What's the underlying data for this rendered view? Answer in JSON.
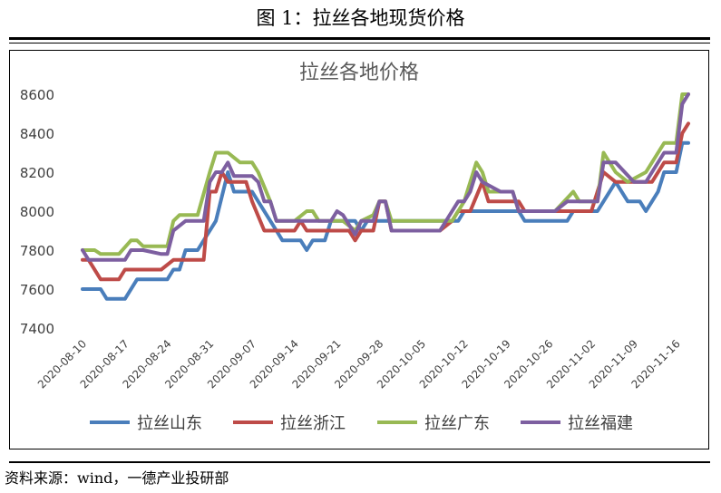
{
  "figure_title": "图 1：拉丝各地现货价格",
  "source_note": "资料来源：wind，一德产业投研部",
  "chart_data": {
    "type": "line",
    "title": "拉丝各地价格",
    "xlabel": "",
    "ylabel": "",
    "ylim": [
      7400,
      8600
    ],
    "yticks": [
      7400,
      7600,
      7800,
      8000,
      8200,
      8400,
      8600
    ],
    "xtick_labels": [
      "2020-08-10",
      "2020-08-17",
      "2020-08-24",
      "2020-08-31",
      "2020-09-07",
      "2020-09-14",
      "2020-09-21",
      "2020-09-28",
      "2020-10-05",
      "2020-10-12",
      "2020-10-19",
      "2020-10-26",
      "2020-11-02",
      "2020-11-09",
      "2020-11-16"
    ],
    "grid": false,
    "legend_position": "bottom",
    "series": [
      {
        "name": "拉丝山东",
        "color": "#4A7EBB",
        "points": [
          [
            "2020-08-10",
            7600
          ],
          [
            "2020-08-13",
            7600
          ],
          [
            "2020-08-14",
            7550
          ],
          [
            "2020-08-17",
            7550
          ],
          [
            "2020-08-19",
            7650
          ],
          [
            "2020-08-24",
            7650
          ],
          [
            "2020-08-25",
            7700
          ],
          [
            "2020-08-26",
            7700
          ],
          [
            "2020-08-27",
            7800
          ],
          [
            "2020-08-29",
            7800
          ],
          [
            "2020-09-01",
            7950
          ],
          [
            "2020-09-03",
            8200
          ],
          [
            "2020-09-04",
            8100
          ],
          [
            "2020-09-07",
            8100
          ],
          [
            "2020-09-10",
            7950
          ],
          [
            "2020-09-11",
            7900
          ],
          [
            "2020-09-12",
            7850
          ],
          [
            "2020-09-15",
            7850
          ],
          [
            "2020-09-16",
            7800
          ],
          [
            "2020-09-17",
            7850
          ],
          [
            "2020-09-19",
            7850
          ],
          [
            "2020-09-20",
            7950
          ],
          [
            "2020-09-23",
            7950
          ],
          [
            "2020-09-24",
            7950
          ],
          [
            "2020-09-25",
            7900
          ],
          [
            "2020-09-26",
            7950
          ],
          [
            "2020-09-30",
            7950
          ],
          [
            "2020-10-01",
            7950
          ],
          [
            "2020-10-11",
            7950
          ],
          [
            "2020-10-12",
            8000
          ],
          [
            "2020-10-15",
            8000
          ],
          [
            "2020-10-21",
            8000
          ],
          [
            "2020-10-22",
            7950
          ],
          [
            "2020-10-26",
            7950
          ],
          [
            "2020-10-29",
            7950
          ],
          [
            "2020-10-30",
            8000
          ],
          [
            "2020-11-03",
            8000
          ],
          [
            "2020-11-06",
            8150
          ],
          [
            "2020-11-08",
            8050
          ],
          [
            "2020-11-10",
            8050
          ],
          [
            "2020-11-11",
            8000
          ],
          [
            "2020-11-12",
            8050
          ],
          [
            "2020-11-13",
            8100
          ],
          [
            "2020-11-14",
            8200
          ],
          [
            "2020-11-16",
            8200
          ],
          [
            "2020-11-17",
            8350
          ],
          [
            "2020-11-18",
            8350
          ]
        ]
      },
      {
        "name": "拉丝浙江",
        "color": "#BE4B48",
        "points": [
          [
            "2020-08-10",
            7750
          ],
          [
            "2020-08-11",
            7750
          ],
          [
            "2020-08-13",
            7650
          ],
          [
            "2020-08-16",
            7650
          ],
          [
            "2020-08-17",
            7700
          ],
          [
            "2020-08-23",
            7700
          ],
          [
            "2020-08-25",
            7750
          ],
          [
            "2020-08-29",
            7750
          ],
          [
            "2020-08-30",
            7750
          ],
          [
            "2020-08-31",
            8100
          ],
          [
            "2020-09-01",
            8100
          ],
          [
            "2020-09-02",
            8200
          ],
          [
            "2020-09-03",
            8150
          ],
          [
            "2020-09-06",
            8150
          ],
          [
            "2020-09-07",
            8050
          ],
          [
            "2020-09-09",
            7900
          ],
          [
            "2020-09-13",
            7900
          ],
          [
            "2020-09-14",
            7900
          ],
          [
            "2020-09-15",
            7950
          ],
          [
            "2020-09-16",
            7900
          ],
          [
            "2020-09-23",
            7900
          ],
          [
            "2020-09-24",
            7850
          ],
          [
            "2020-09-25",
            7900
          ],
          [
            "2020-09-27",
            7900
          ],
          [
            "2020-09-28",
            8050
          ],
          [
            "2020-09-29",
            8050
          ],
          [
            "2020-09-30",
            7900
          ],
          [
            "2020-10-06",
            7900
          ],
          [
            "2020-10-08",
            7900
          ],
          [
            "2020-10-10",
            7950
          ],
          [
            "2020-10-11",
            8000
          ],
          [
            "2020-10-13",
            8000
          ],
          [
            "2020-10-15",
            8150
          ],
          [
            "2020-10-16",
            8050
          ],
          [
            "2020-10-21",
            8050
          ],
          [
            "2020-10-22",
            8000
          ],
          [
            "2020-10-31",
            8000
          ],
          [
            "2020-11-02",
            8000
          ],
          [
            "2020-11-04",
            8200
          ],
          [
            "2020-11-06",
            8150
          ],
          [
            "2020-11-11",
            8150
          ],
          [
            "2020-11-12",
            8150
          ],
          [
            "2020-11-14",
            8250
          ],
          [
            "2020-11-16",
            8250
          ],
          [
            "2020-11-17",
            8400
          ],
          [
            "2020-11-18",
            8450
          ]
        ]
      },
      {
        "name": "拉丝广东",
        "color": "#98B954",
        "points": [
          [
            "2020-08-10",
            7800
          ],
          [
            "2020-08-11",
            7800
          ],
          [
            "2020-08-12",
            7800
          ],
          [
            "2020-08-13",
            7780
          ],
          [
            "2020-08-16",
            7780
          ],
          [
            "2020-08-18",
            7850
          ],
          [
            "2020-08-19",
            7850
          ],
          [
            "2020-08-20",
            7820
          ],
          [
            "2020-08-23",
            7820
          ],
          [
            "2020-08-24",
            7820
          ],
          [
            "2020-08-25",
            7950
          ],
          [
            "2020-08-26",
            7980
          ],
          [
            "2020-08-29",
            7980
          ],
          [
            "2020-08-31",
            8200
          ],
          [
            "2020-09-01",
            8300
          ],
          [
            "2020-09-03",
            8300
          ],
          [
            "2020-09-05",
            8250
          ],
          [
            "2020-09-07",
            8250
          ],
          [
            "2020-09-08",
            8200
          ],
          [
            "2020-09-10",
            8050
          ],
          [
            "2020-09-11",
            7950
          ],
          [
            "2020-09-14",
            7950
          ],
          [
            "2020-09-16",
            8000
          ],
          [
            "2020-09-17",
            8000
          ],
          [
            "2020-09-18",
            7950
          ],
          [
            "2020-09-19",
            7950
          ],
          [
            "2020-09-22",
            7950
          ],
          [
            "2020-09-24",
            7900
          ],
          [
            "2020-09-25",
            7950
          ],
          [
            "2020-09-27",
            7980
          ],
          [
            "2020-09-28",
            8050
          ],
          [
            "2020-09-29",
            8050
          ],
          [
            "2020-09-30",
            7950
          ],
          [
            "2020-10-06",
            7950
          ],
          [
            "2020-10-10",
            7950
          ],
          [
            "2020-10-11",
            8000
          ],
          [
            "2020-10-12",
            8050
          ],
          [
            "2020-10-13",
            8150
          ],
          [
            "2020-10-14",
            8250
          ],
          [
            "2020-10-15",
            8200
          ],
          [
            "2020-10-16",
            8100
          ],
          [
            "2020-10-20",
            8100
          ],
          [
            "2020-10-21",
            8000
          ],
          [
            "2020-10-27",
            8000
          ],
          [
            "2020-10-30",
            8100
          ],
          [
            "2020-10-31",
            8050
          ],
          [
            "2020-11-03",
            8050
          ],
          [
            "2020-11-04",
            8300
          ],
          [
            "2020-11-06",
            8200
          ],
          [
            "2020-11-08",
            8150
          ],
          [
            "2020-11-11",
            8200
          ],
          [
            "2020-11-13",
            8300
          ],
          [
            "2020-11-14",
            8350
          ],
          [
            "2020-11-16",
            8350
          ],
          [
            "2020-11-17",
            8600
          ],
          [
            "2020-11-18",
            8600
          ]
        ]
      },
      {
        "name": "拉丝福建",
        "color": "#7D5FA0",
        "points": [
          [
            "2020-08-10",
            7800
          ],
          [
            "2020-08-11",
            7750
          ],
          [
            "2020-08-17",
            7750
          ],
          [
            "2020-08-18",
            7800
          ],
          [
            "2020-08-19",
            7800
          ],
          [
            "2020-08-20",
            7800
          ],
          [
            "2020-08-23",
            7780
          ],
          [
            "2020-08-24",
            7780
          ],
          [
            "2020-08-25",
            7900
          ],
          [
            "2020-08-27",
            7950
          ],
          [
            "2020-08-30",
            7950
          ],
          [
            "2020-08-31",
            8150
          ],
          [
            "2020-09-01",
            8200
          ],
          [
            "2020-09-02",
            8200
          ],
          [
            "2020-09-03",
            8250
          ],
          [
            "2020-09-04",
            8180
          ],
          [
            "2020-09-07",
            8180
          ],
          [
            "2020-09-08",
            8150
          ],
          [
            "2020-09-09",
            8050
          ],
          [
            "2020-09-10",
            8050
          ],
          [
            "2020-09-11",
            7950
          ],
          [
            "2020-09-15",
            7950
          ],
          [
            "2020-09-17",
            7950
          ],
          [
            "2020-09-20",
            7950
          ],
          [
            "2020-09-21",
            8000
          ],
          [
            "2020-09-22",
            7980
          ],
          [
            "2020-09-24",
            7880
          ],
          [
            "2020-09-25",
            7950
          ],
          [
            "2020-09-27",
            7950
          ],
          [
            "2020-09-28",
            8050
          ],
          [
            "2020-09-29",
            8050
          ],
          [
            "2020-09-30",
            7900
          ],
          [
            "2020-10-08",
            7900
          ],
          [
            "2020-10-10",
            8000
          ],
          [
            "2020-10-11",
            8050
          ],
          [
            "2020-10-12",
            8050
          ],
          [
            "2020-10-13",
            8100
          ],
          [
            "2020-10-14",
            8200
          ],
          [
            "2020-10-15",
            8150
          ],
          [
            "2020-10-18",
            8100
          ],
          [
            "2020-10-20",
            8100
          ],
          [
            "2020-10-21",
            8000
          ],
          [
            "2020-10-27",
            8000
          ],
          [
            "2020-10-29",
            8050
          ],
          [
            "2020-11-03",
            8050
          ],
          [
            "2020-11-04",
            8250
          ],
          [
            "2020-11-06",
            8250
          ],
          [
            "2020-11-09",
            8150
          ],
          [
            "2020-11-10",
            8150
          ],
          [
            "2020-11-11",
            8150
          ],
          [
            "2020-11-12",
            8200
          ],
          [
            "2020-11-14",
            8300
          ],
          [
            "2020-11-16",
            8300
          ],
          [
            "2020-11-17",
            8550
          ],
          [
            "2020-11-18",
            8600
          ]
        ]
      }
    ]
  }
}
